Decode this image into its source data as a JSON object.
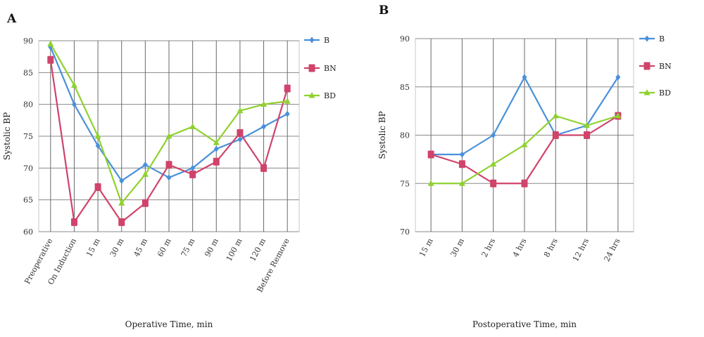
{
  "chart_data": [
    {
      "panel": "A",
      "type": "line",
      "xlabel": "Operative Time, min",
      "ylabel": "Systolic BP",
      "ylim": [
        60,
        90
      ],
      "yticks": [
        60,
        65,
        70,
        75,
        80,
        85,
        90
      ],
      "grid": true,
      "legend": "right",
      "categories": [
        "Preoperative",
        "On Induction",
        "15 m",
        "30 m",
        "45 m",
        "60 m",
        "75 m",
        "90 m",
        "100 m",
        "120 m",
        "Before Remove"
      ],
      "series": [
        {
          "name": "B",
          "color": "#4a90d9",
          "marker": "diamond",
          "values": [
            89,
            80,
            73.5,
            68,
            70.5,
            68.5,
            70,
            73,
            74.5,
            76.5,
            78.5
          ]
        },
        {
          "name": "BN",
          "color": "#d0436a",
          "marker": "square",
          "values": [
            87,
            61.5,
            67,
            61.5,
            64.5,
            70.5,
            69,
            71,
            75.5,
            70,
            82.5
          ]
        },
        {
          "name": "BD",
          "color": "#8fd12e",
          "marker": "triangle",
          "values": [
            89.5,
            83,
            75,
            64.5,
            69,
            75,
            76.5,
            74,
            79,
            80,
            80.5
          ]
        }
      ]
    },
    {
      "panel": "B",
      "type": "line",
      "xlabel": "Postoperative Time, min",
      "ylabel": "Systolic BP",
      "ylim": [
        70,
        90
      ],
      "yticks": [
        70,
        75,
        80,
        85,
        90
      ],
      "grid": true,
      "legend": "right",
      "categories": [
        "15 m",
        "30 m",
        "2 hrs",
        "4 hrs",
        "8 hrs",
        "12 hrs",
        "24 hrs"
      ],
      "series": [
        {
          "name": "B",
          "color": "#4a90d9",
          "marker": "diamond",
          "values": [
            78,
            78,
            80,
            86,
            80,
            81,
            86
          ]
        },
        {
          "name": "BN",
          "color": "#d0436a",
          "marker": "square",
          "values": [
            78,
            77,
            75,
            75,
            80,
            80,
            82
          ]
        },
        {
          "name": "BD",
          "color": "#8fd12e",
          "marker": "triangle",
          "values": [
            75,
            75,
            77,
            79,
            82,
            81,
            82
          ]
        }
      ]
    }
  ]
}
